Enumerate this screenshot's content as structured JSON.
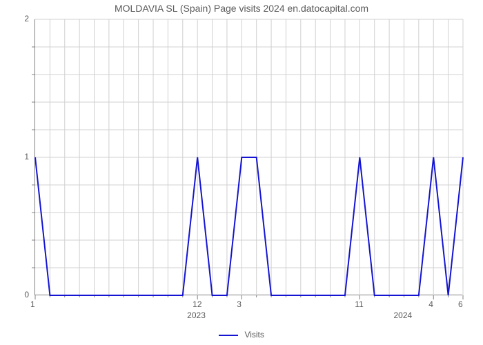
{
  "title": "MOLDAVIA SL (Spain) Page visits 2024 en.datocapital.com",
  "chart": {
    "type": "line",
    "background_color": "#ffffff",
    "grid_color": "#d0d0d0",
    "axis_color": "#808080",
    "text_color": "#5a5a5a",
    "title_fontsize": 14,
    "label_fontsize": 12,
    "ylim": [
      0,
      2
    ],
    "yticks_major": [
      0,
      1,
      2
    ],
    "yticks_minor": [
      0.2,
      0.4,
      0.6,
      0.8,
      1.2,
      1.4,
      1.6,
      1.8
    ],
    "x_index_max": 29,
    "x_major_ticks": [
      {
        "index": 0,
        "label": "1"
      },
      {
        "index": 11,
        "label": "12"
      },
      {
        "index": 14,
        "label": "3"
      },
      {
        "index": 22,
        "label": "11"
      },
      {
        "index": 27,
        "label": "4"
      },
      {
        "index": 29,
        "label": "6"
      }
    ],
    "x_group_labels": [
      {
        "center_index": 11,
        "label": "2023"
      },
      {
        "center_index": 25,
        "label": "2024"
      }
    ],
    "series": {
      "name": "Visits",
      "color": "#1414d2",
      "line_width": 2,
      "values": [
        1,
        0,
        0,
        0,
        0,
        0,
        0,
        0,
        0,
        0,
        0,
        1,
        0,
        0,
        1,
        1,
        0,
        0,
        0,
        0,
        0,
        0,
        1,
        0,
        0,
        0,
        0,
        1,
        0,
        1
      ]
    },
    "legend": {
      "label": "Visits",
      "swatch_color": "#1414d2"
    }
  }
}
